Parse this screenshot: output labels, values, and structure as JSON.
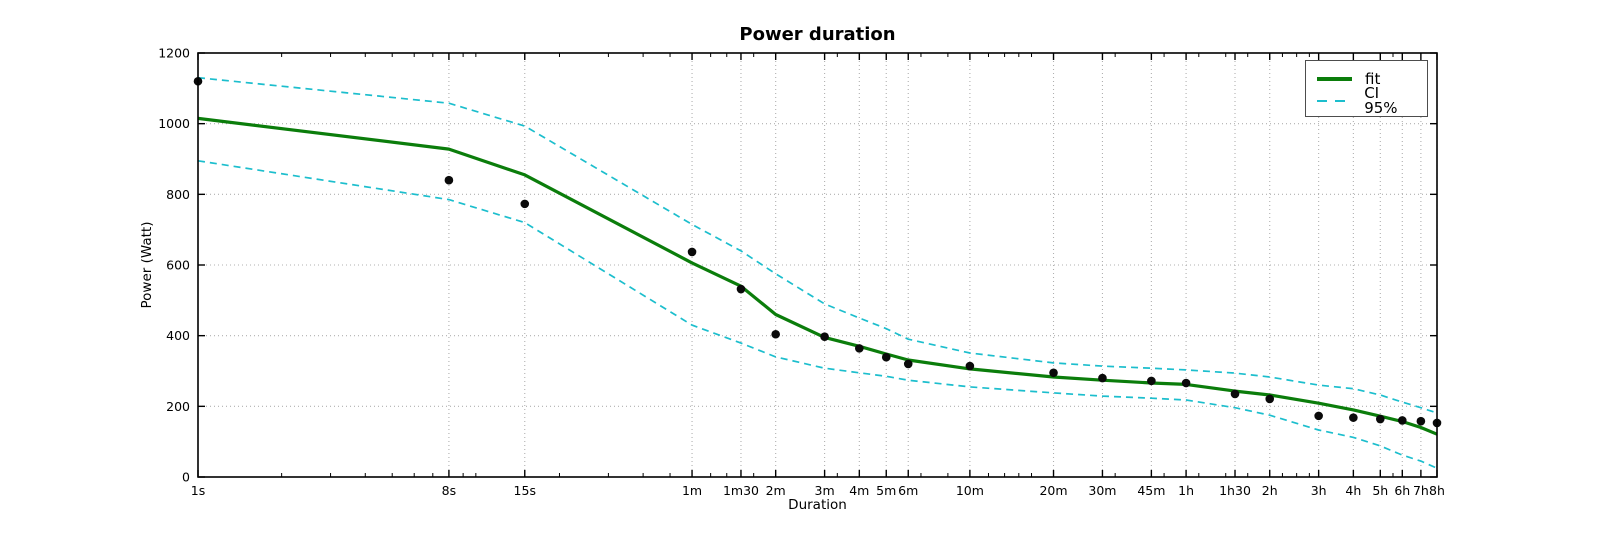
{
  "chart_data": {
    "type": "line",
    "title": "Power duration",
    "xlabel": "Duration",
    "ylabel": "Power (Watt)",
    "x_scale": "log",
    "xlim_seconds": [
      1,
      28800
    ],
    "ylim": [
      0,
      1200
    ],
    "grid": true,
    "legend_position": "top-right",
    "legend": [
      "fit",
      "CI 95%"
    ],
    "y_ticks": [
      0,
      200,
      400,
      600,
      800,
      1000,
      1200
    ],
    "x_ticks": [
      {
        "label": "1s",
        "seconds": 1
      },
      {
        "label": "8s",
        "seconds": 8
      },
      {
        "label": "15s",
        "seconds": 15
      },
      {
        "label": "1m",
        "seconds": 60
      },
      {
        "label": "1m30",
        "seconds": 90
      },
      {
        "label": "2m",
        "seconds": 120
      },
      {
        "label": "3m",
        "seconds": 180
      },
      {
        "label": "4m",
        "seconds": 240
      },
      {
        "label": "5m",
        "seconds": 300
      },
      {
        "label": "6m",
        "seconds": 360
      },
      {
        "label": "10m",
        "seconds": 600
      },
      {
        "label": "20m",
        "seconds": 1200
      },
      {
        "label": "30m",
        "seconds": 1800
      },
      {
        "label": "45m",
        "seconds": 2700
      },
      {
        "label": "1h",
        "seconds": 3600
      },
      {
        "label": "1h30",
        "seconds": 5400
      },
      {
        "label": "2h",
        "seconds": 7200
      },
      {
        "label": "3h",
        "seconds": 10800
      },
      {
        "label": "4h",
        "seconds": 14400
      },
      {
        "label": "5h",
        "seconds": 18000
      },
      {
        "label": "6h",
        "seconds": 21600
      },
      {
        "label": "7h",
        "seconds": 25200
      },
      {
        "label": "8h",
        "seconds": 28800
      }
    ],
    "x_minor_ticks_seconds": [
      2,
      3,
      4,
      5,
      6,
      7,
      9,
      10,
      20,
      30,
      40,
      50,
      70,
      80,
      100,
      200,
      400,
      500,
      700,
      800,
      900,
      1000,
      2000,
      3000,
      4000,
      5000,
      6000,
      8000,
      9000,
      10000,
      20000
    ],
    "durations_s": [
      1,
      8,
      15,
      60,
      90,
      120,
      180,
      240,
      300,
      360,
      600,
      1200,
      1800,
      2700,
      3600,
      5400,
      7200,
      10800,
      14400,
      18000,
      21600,
      25200,
      28800
    ],
    "series": [
      {
        "name": "measurements",
        "type": "scatter",
        "values": [
          1120,
          840,
          773,
          637,
          532,
          404,
          397,
          364,
          339,
          320,
          314,
          295,
          280,
          272,
          266,
          235,
          221,
          173,
          168,
          164,
          160,
          158,
          153
        ]
      },
      {
        "name": "fit",
        "type": "line",
        "values": [
          1015,
          928,
          855,
          606,
          540,
          460,
          395,
          370,
          348,
          331,
          306,
          283,
          274,
          266,
          262,
          243,
          232,
          209,
          190,
          172,
          157,
          140,
          121
        ]
      },
      {
        "name": "ci_upper",
        "type": "dashed",
        "values": [
          1130,
          1058,
          993,
          715,
          640,
          575,
          490,
          450,
          420,
          390,
          351,
          323,
          314,
          308,
          303,
          294,
          283,
          260,
          250,
          232,
          212,
          196,
          181
        ]
      },
      {
        "name": "ci_lower",
        "type": "dashed",
        "values": [
          895,
          785,
          720,
          430,
          379,
          340,
          308,
          295,
          285,
          274,
          255,
          238,
          229,
          223,
          218,
          196,
          175,
          133,
          112,
          88,
          62,
          45,
          25
        ]
      }
    ],
    "styles": {
      "fit_color": "#0b7d0b",
      "ci_color": "#1cbecd",
      "scatter_color": "#0a0a0a",
      "grid_color": "#b0b0b0",
      "axis_color": "#000000",
      "background": "#ffffff"
    }
  }
}
